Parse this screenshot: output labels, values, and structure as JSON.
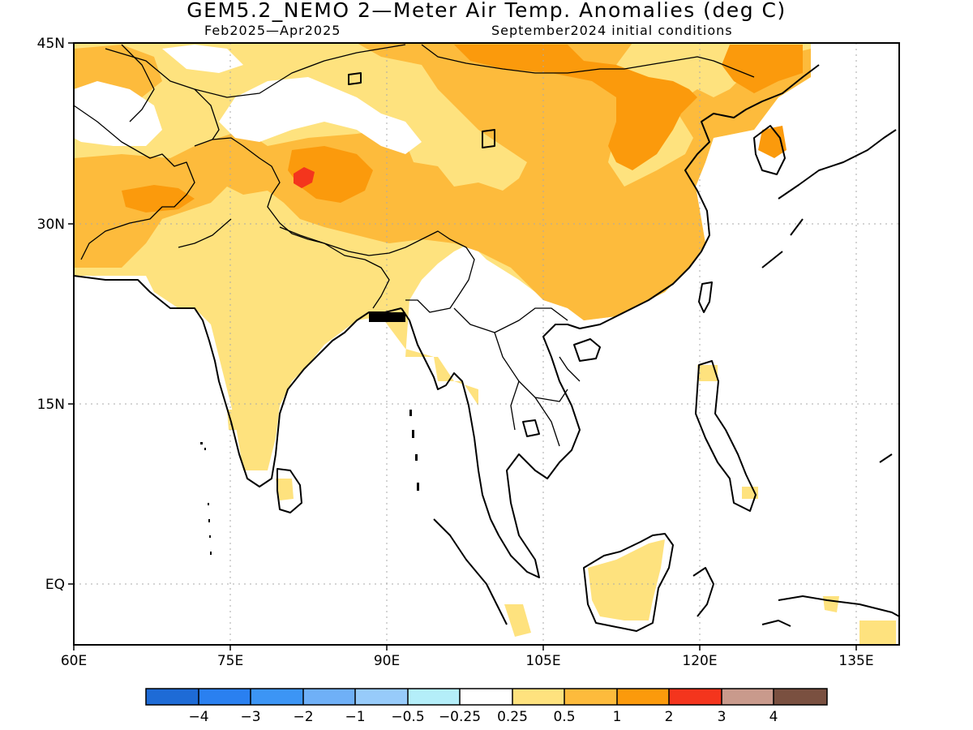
{
  "title": "GEM5.2_NEMO 2—Meter Air Temp. Anomalies (deg C)",
  "subtitle_left": "Feb2025—Apr2025",
  "subtitle_right": "September2024 initial conditions",
  "lat_labels": [
    {
      "lat": 45,
      "label": "45N"
    },
    {
      "lat": 30,
      "label": "30N"
    },
    {
      "lat": 15,
      "label": "15N"
    },
    {
      "lat": 0,
      "label": "EQ"
    }
  ],
  "lon_labels": [
    {
      "lon": 60,
      "label": "60E"
    },
    {
      "lon": 75,
      "label": "75E"
    },
    {
      "lon": 90,
      "label": "90E"
    },
    {
      "lon": 105,
      "label": "105E"
    },
    {
      "lon": 120,
      "label": "120E"
    },
    {
      "lon": 135,
      "label": "135E"
    }
  ],
  "extent": {
    "lon_min": 60,
    "lon_max": 139,
    "lat_min": -5,
    "lat_max": 45
  },
  "colorbar": {
    "colors": [
      "#1e6bd6",
      "#2a80f0",
      "#3c95f5",
      "#6fb0f7",
      "#97cbfa",
      "#b4eef9",
      "#ffffff",
      "#fee27e",
      "#fdbb3c",
      "#fb9a0c",
      "#f4351d",
      "#c99a8c",
      "#7a5040"
    ],
    "labels": [
      "−4",
      "−3",
      "−2",
      "−1",
      "−0.5",
      "−0.25",
      "0.25",
      "0.5",
      "1",
      "2",
      "3",
      "4"
    ]
  },
  "legend_colors": {
    "light": "#fee27e",
    "mid": "#fdbb3c",
    "strong": "#fb9a0c",
    "peak": "#f4351d"
  }
}
